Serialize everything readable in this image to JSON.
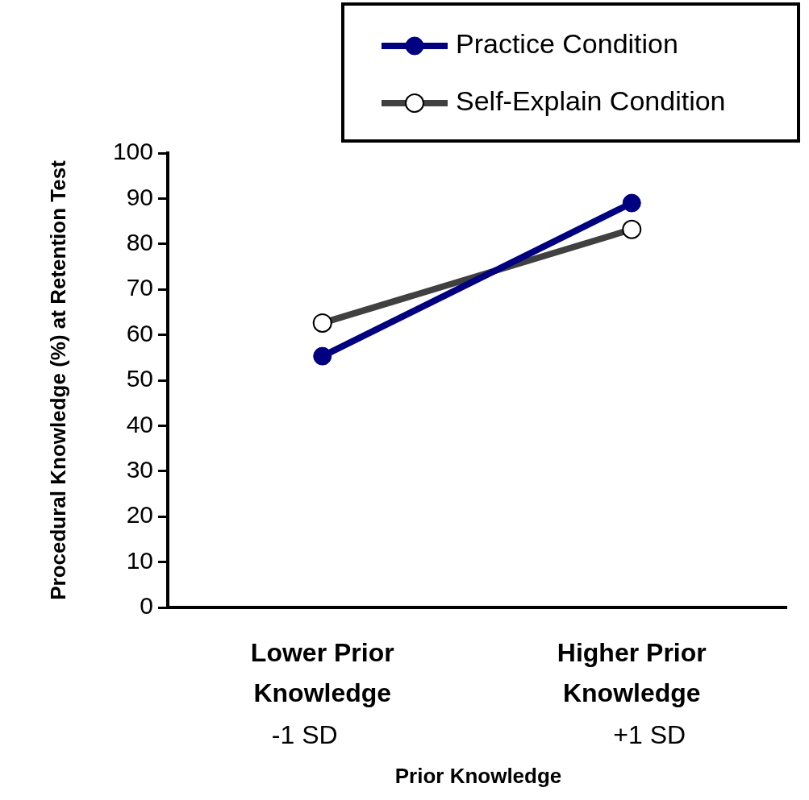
{
  "chart_data": {
    "type": "line",
    "xlabel": "Prior Knowledge",
    "ylabel": "Procedural Knowledge (%) at Retention Test",
    "categories": [
      "Lower Prior Knowledge\n-1 SD",
      "Higher Prior Knowledge\n+1 SD"
    ],
    "series": [
      {
        "name": "Practice Condition",
        "color": "#000080",
        "values": [
          55.3,
          89
        ],
        "marker": "circle"
      },
      {
        "name": "Self-Explain Condition",
        "color": "#404040",
        "values": [
          62.6,
          83.2
        ],
        "marker": "circle",
        "colors": [
          "#ffffff",
          "#ffffff"
        ]
      }
    ],
    "ylim": [
      0,
      100
    ],
    "yticks": [
      0,
      10,
      20,
      30,
      40,
      50,
      60,
      70,
      80,
      90,
      100
    ],
    "grid": false,
    "legend": "top right",
    "line_style": "solid"
  }
}
